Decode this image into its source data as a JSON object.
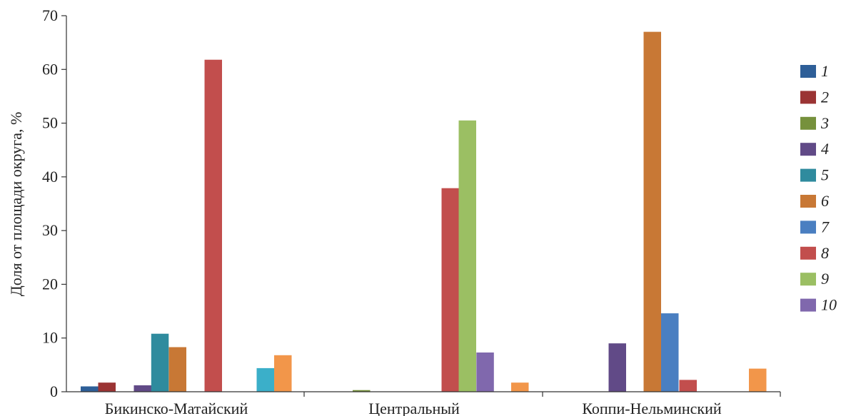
{
  "chart_data": {
    "type": "bar",
    "title": "",
    "xlabel": "",
    "ylabel": "Доля от площади округа, %",
    "ylim": [
      0,
      70
    ],
    "yticks": [
      "0",
      "10",
      "20",
      "30",
      "40",
      "50",
      "60",
      "70"
    ],
    "grid": false,
    "legend_position": "right",
    "categories": [
      "Бикинско-Матайский",
      "Центральный",
      "Коппи-Нельминский"
    ],
    "series": [
      {
        "name": "1",
        "color": "#2e5f98",
        "values": [
          1.0,
          0,
          0
        ]
      },
      {
        "name": "2",
        "color": "#9b3434",
        "values": [
          1.7,
          0,
          0
        ]
      },
      {
        "name": "3",
        "color": "#76913c",
        "values": [
          0,
          0.3,
          0
        ]
      },
      {
        "name": "4",
        "color": "#614a87",
        "values": [
          1.2,
          0,
          9.0
        ]
      },
      {
        "name": "5",
        "color": "#2f8b9e",
        "values": [
          10.8,
          0,
          0
        ]
      },
      {
        "name": "6",
        "color": "#c87835",
        "values": [
          8.3,
          0,
          67.0
        ]
      },
      {
        "name": "7",
        "color": "#4a7fc1",
        "values": [
          0,
          0,
          14.6
        ]
      },
      {
        "name": "8",
        "color": "#c24e4d",
        "values": [
          61.8,
          37.9,
          2.2
        ]
      },
      {
        "name": "9",
        "color": "#9bbf63",
        "values": [
          0,
          50.5,
          0
        ]
      },
      {
        "name": "10",
        "color": "#8068ad",
        "values": [
          0,
          7.3,
          0
        ]
      },
      {
        "name": "",
        "color": "#3bafc9",
        "values": [
          4.4,
          0,
          0
        ]
      },
      {
        "name": "",
        "color": "#f2964a",
        "values": [
          6.8,
          1.7,
          4.3
        ]
      }
    ],
    "legend_entries": [
      "1",
      "2",
      "3",
      "4",
      "5",
      "6",
      "7",
      "8",
      "9",
      "10"
    ]
  }
}
